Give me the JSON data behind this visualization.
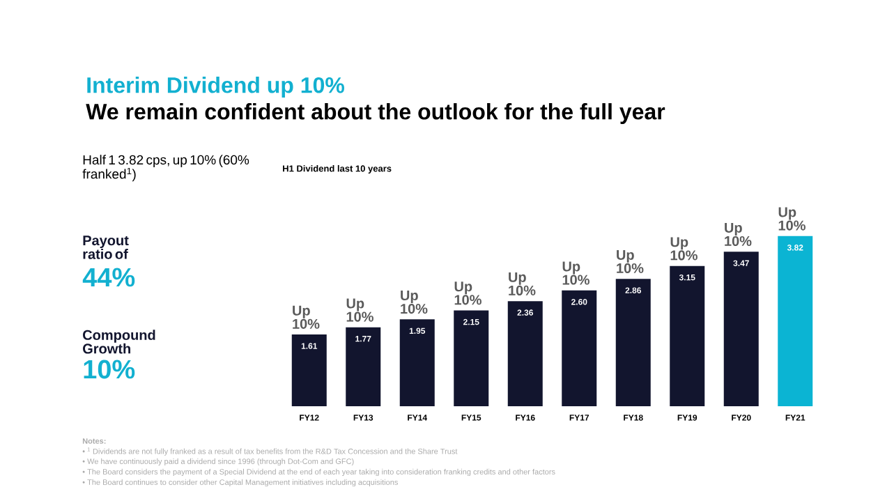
{
  "chart_data": {
    "type": "bar",
    "title": "Interim Dividend up 10%",
    "subtitle": "We remain confident about the outlook for the full year",
    "categories": [
      "FY12",
      "FY13",
      "FY14",
      "FY15",
      "FY16",
      "FY17",
      "FY18",
      "FY19",
      "FY20",
      "FY21"
    ],
    "values": [
      1.61,
      1.77,
      1.95,
      2.15,
      2.36,
      2.6,
      2.86,
      3.15,
      3.47,
      3.82
    ],
    "value_labels": [
      "1.61",
      "1.77",
      "1.95",
      "2.15",
      "2.36",
      "2.60",
      "2.86",
      "3.15",
      "3.47",
      "3.82"
    ],
    "colors": [
      "#12152e",
      "#12152e",
      "#12152e",
      "#12152e",
      "#12152e",
      "#12152e",
      "#12152e",
      "#12152e",
      "#12152e",
      "#0bb4d3"
    ],
    "annotations": [
      "Half 1 3.82 cps, up 10% (60% franked$^{1}$)",
      "Payout ratio of",
      "44%",
      "Compound Growth",
      "10%",
      "H1 Dividend last 10 years",
      "Notes:",
      "• $^{1}$ Dividends are not fully franked as a result of tax benefits from the R&D Tax Concession and the Share Trust",
      "• We have continuously paid a dividend since 1996 (through Dot-Com and GFC)",
      "• The Board considers the payment of a Special Dividend at the end of each year taking into consideration franking credits and other factors",
      "• The Board continues to consider other Capital Management initiatives including acquisitions",
      {
        "text": "Up 10%",
        "x": "FY12",
        "y": 1.61
      },
      {
        "text": "Up 10%",
        "x": "FY13",
        "y": 1.77
      },
      {
        "text": "Up 10%",
        "x": "FY14",
        "y": 1.95
      },
      {
        "text": "Up 10%",
        "x": "FY15",
        "y": 2.15
      },
      {
        "text": "Up 10%",
        "x": "FY16",
        "y": 2.36
      },
      {
        "text": "Up 10%",
        "x": "FY17",
        "y": 2.6
      },
      {
        "text": "Up 10%",
        "x": "FY18",
        "y": 2.86
      },
      {
        "text": "Up 10%",
        "x": "FY19",
        "y": 3.15
      },
      {
        "text": "Up 10%",
        "x": "FY20",
        "y": 3.47
      },
      {
        "text": "Up 10%",
        "x": "FY21",
        "y": 3.82
      }
    ]
  }
}
